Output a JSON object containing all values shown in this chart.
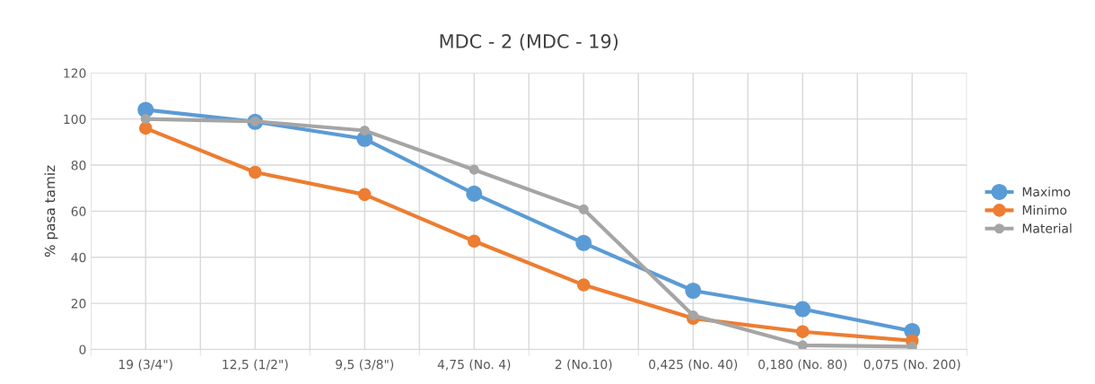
{
  "chart_data": {
    "type": "line",
    "title": "MDC - 2 (MDC - 19)",
    "ylabel": "% pasa tamiz",
    "categories": [
      "19 (3/4\")",
      "12,5 (1/2\")",
      "9,5 (3/8\")",
      "4,75 (No. 4)",
      "2 (No.10)",
      "0,425 (No. 40)",
      "0,180 (No. 80)",
      "0,075 (No. 200)"
    ],
    "series": [
      {
        "name": "Maximo",
        "color": "#5b9bd5",
        "values": [
          104,
          98.8,
          91.4,
          67.6,
          46.2,
          25.5,
          17.5,
          8
        ]
      },
      {
        "name": "Minimo",
        "color": "#ed7d31",
        "values": [
          96,
          76.9,
          67.2,
          47,
          28,
          13.5,
          7.7,
          3.8
        ]
      },
      {
        "name": "Material",
        "color": "#a5a5a5",
        "values": [
          100,
          99,
          95,
          78,
          60.8,
          14.8,
          1.8,
          1.2
        ]
      }
    ],
    "ylim": [
      0,
      120
    ],
    "yticks": [
      0,
      20,
      40,
      60,
      80,
      100,
      120
    ],
    "grid": true,
    "legend": "right",
    "marker": "circle",
    "line_style": "solid"
  }
}
